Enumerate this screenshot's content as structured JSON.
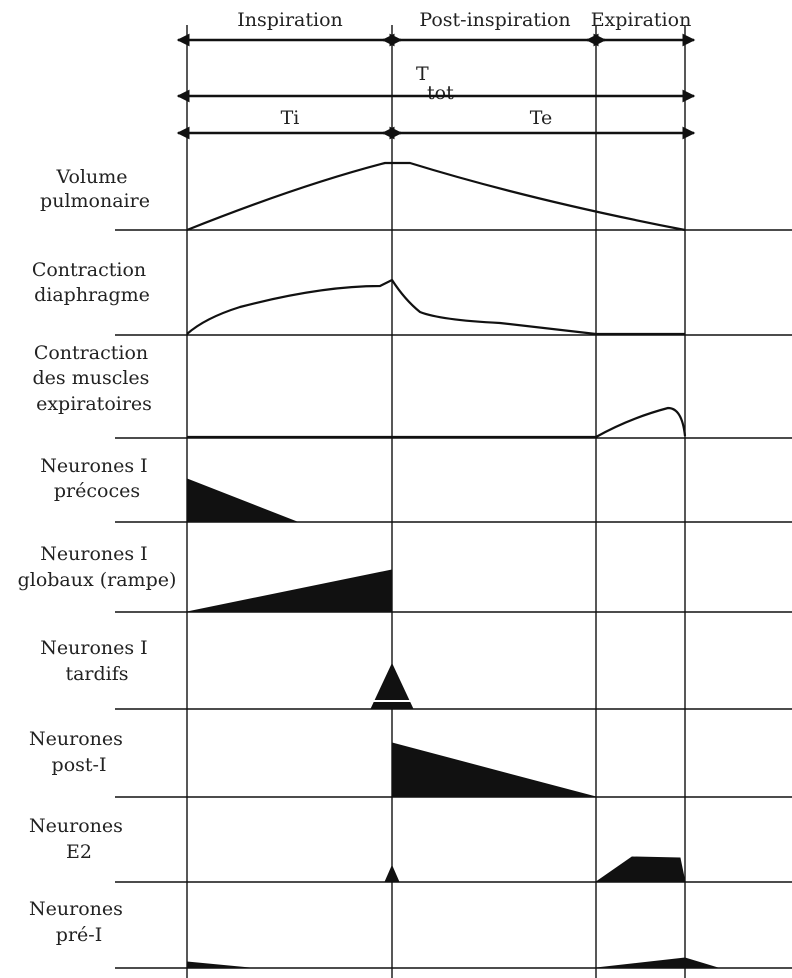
{
  "phases": {
    "inspiration": "Inspiration",
    "post_inspiration": "Post-inspiration",
    "expiration": "Expiration"
  },
  "timing": {
    "total": "T",
    "total_sub": "tot",
    "ti": "Ti",
    "te": "Te"
  },
  "rows": [
    {
      "id": "volume",
      "lines": [
        "Volume",
        "pulmonaire"
      ]
    },
    {
      "id": "diaphragm",
      "lines": [
        "Contraction",
        "diaphragme"
      ]
    },
    {
      "id": "expiratory",
      "lines": [
        "Contraction",
        "des muscles",
        "expiratoires"
      ]
    },
    {
      "id": "early-i",
      "lines": [
        "Neurones I",
        "précoces"
      ]
    },
    {
      "id": "ramp-i",
      "lines": [
        "Neurones I",
        "globaux (rampe)"
      ]
    },
    {
      "id": "late-i",
      "lines": [
        "Neurones I",
        "tardifs"
      ]
    },
    {
      "id": "post-i",
      "lines": [
        "Neurones",
        "post-I"
      ]
    },
    {
      "id": "e2",
      "lines": [
        "Neurones",
        "E2"
      ]
    },
    {
      "id": "pre-i",
      "lines": [
        "Neurones",
        "pré-I"
      ]
    }
  ]
}
